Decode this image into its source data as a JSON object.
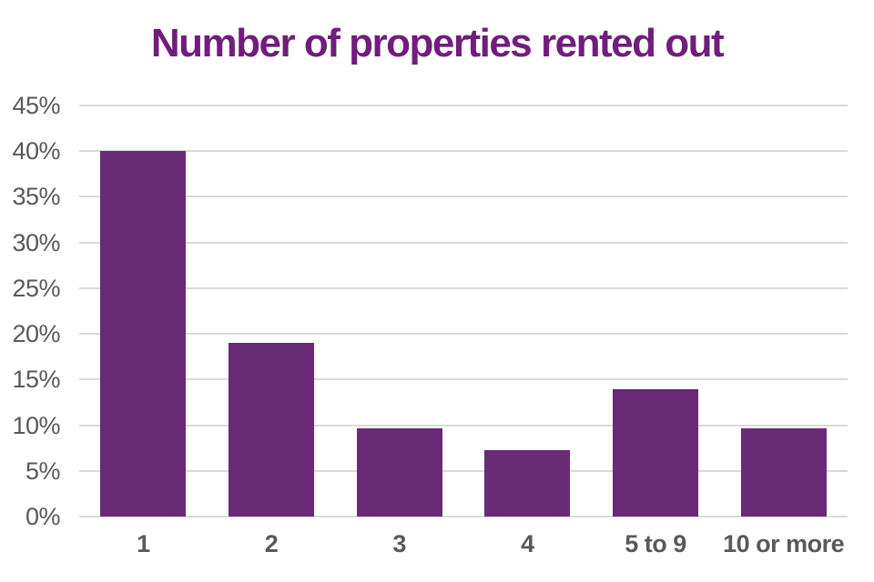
{
  "chart_data": {
    "type": "bar",
    "title": "Number of properties rented out",
    "categories": [
      "1",
      "2",
      "3",
      "4",
      "5 to 9",
      "10 or more"
    ],
    "values": [
      40,
      19,
      9.7,
      7.3,
      13.9,
      9.7
    ],
    "xlabel": "",
    "ylabel": "",
    "ylim": [
      0,
      45
    ],
    "ytick_step": 5,
    "ytick_labels": [
      "0%",
      "5%",
      "10%",
      "15%",
      "20%",
      "25%",
      "30%",
      "35%",
      "40%",
      "45%"
    ],
    "grid": "horizontal-only",
    "legend": "none",
    "colors": {
      "bar": "#692a76",
      "title": "#701d7d",
      "axis_text": "#595959",
      "gridline": "#d9d9d9",
      "background": "#ffffff"
    }
  }
}
